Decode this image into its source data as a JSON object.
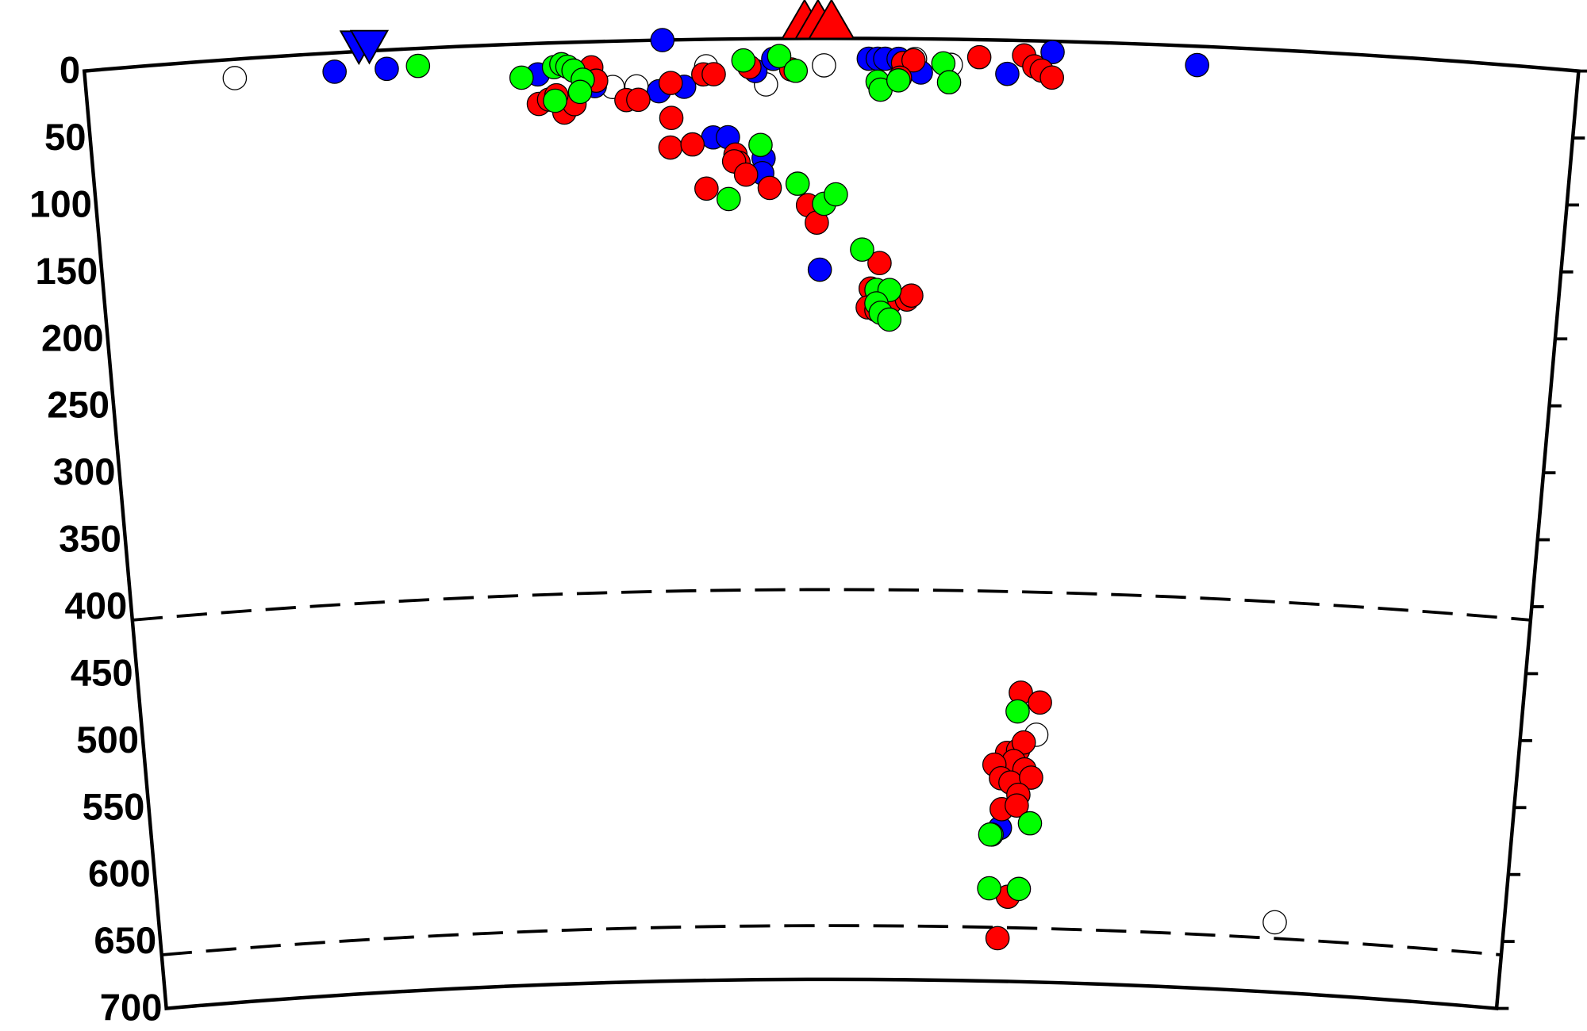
{
  "chart_data": {
    "type": "scatter",
    "xlim": [
      -5,
      5
    ],
    "ylim": [
      0,
      700
    ],
    "yticks": [
      0,
      50,
      100,
      150,
      200,
      250,
      300,
      350,
      400,
      450,
      500,
      550,
      600,
      650,
      700
    ],
    "boundaries": [
      410,
      660
    ],
    "series": [
      {
        "color": "#ffffff",
        "x": [
          -4.0,
          -1.47,
          -1.31,
          -0.84,
          -0.44,
          -0.05,
          0.56,
          0.8,
          1.49,
          3.3
        ],
        "values": [
          14,
          34,
          34,
          20,
          34,
          20,
          15,
          19,
          516,
          648
        ]
      },
      {
        "color": "#0000ff",
        "x": [
          -3.33,
          -2.98,
          -1.97,
          -1.59,
          -1.13,
          -1.16,
          -0.99,
          -0.8,
          -0.7,
          -0.46,
          -0.47,
          -0.51,
          -0.39,
          -0.08,
          0.25,
          0.31,
          0.36,
          0.45,
          0.6,
          1.18,
          1.48,
          2.45,
          1.24
        ],
        "values": [
          14,
          14,
          23,
          33,
          0,
          38,
          35,
          73,
          73,
          89,
          100,
          24,
          15,
          172,
          15,
          15,
          15,
          15,
          25,
          25,
          8,
          14,
          586
        ]
      },
      {
        "color": "#ff0000",
        "x": [
          0.99,
          1.29,
          1.36,
          1.41,
          1.48,
          0.48,
          0.55,
          0.46,
          -0.27,
          -0.55,
          -0.86,
          -0.79,
          -1.08,
          -1.08,
          -1.38,
          -1.3,
          -1.61,
          -1.58,
          -1.97,
          -1.9,
          -1.8,
          -1.73,
          -1.85,
          -1.09,
          -0.94,
          -0.65,
          -0.63,
          -0.66,
          -0.58,
          -0.42,
          -0.85,
          -0.16,
          -0.1,
          0.33,
          0.27,
          0.25,
          0.31,
          0.4,
          0.52,
          0.55,
          1.37,
          1.51,
          1.28,
          1.36,
          1.4,
          1.33,
          1.41,
          1.19,
          1.24,
          1.31,
          1.46,
          1.37,
          1.25,
          1.36,
          1.31,
          1.24
        ],
        "values": [
          13,
          11,
          19,
          22,
          27,
          18,
          16,
          29,
          23,
          21,
          26,
          26,
          32,
          58,
          44,
          44,
          19,
          29,
          45,
          42,
          52,
          46,
          39,
          80,
          78,
          86,
          92,
          91,
          101,
          111,
          111,
          124,
          137,
          167,
          186,
          200,
          202,
          197,
          194,
          191,
          485,
          492,
          530,
          528,
          522,
          536,
          542,
          539,
          549,
          552,
          548,
          561,
          572,
          569,
          637,
          668
        ]
      },
      {
        "color": "#00ff00",
        "x": [
          -2.77,
          -2.08,
          -1.86,
          -1.81,
          -1.77,
          -1.73,
          -1.67,
          -1.69,
          -1.86,
          -0.59,
          -0.35,
          -0.24,
          0.75,
          0.79,
          0.31,
          0.33,
          0.45,
          -0.48,
          -0.7,
          -0.23,
          -0.05,
          0.03,
          0.21,
          0.31,
          0.4,
          0.31,
          0.34,
          0.4,
          1.35,
          1.46,
          1.18,
          1.17,
          1.17,
          1.39
        ],
        "values": [
          13,
          25,
          18,
          16,
          18,
          21,
          28,
          37,
          43,
          16,
          13,
          24,
          18,
          32,
          32,
          38,
          31,
          79,
          119,
          108,
          123,
          116,
          157,
          187,
          187,
          197,
          204,
          209,
          499,
          582,
          591,
          591,
          631,
          631
        ]
      }
    ],
    "stations": [
      {
        "shape": "triangle",
        "color": "#ff0000",
        "x": [
          -0.18,
          -0.09,
          0.0
        ]
      },
      {
        "shape": "inverted-triangle",
        "color": "#0000ff",
        "x": [
          -3.16,
          -3.09
        ]
      }
    ]
  }
}
